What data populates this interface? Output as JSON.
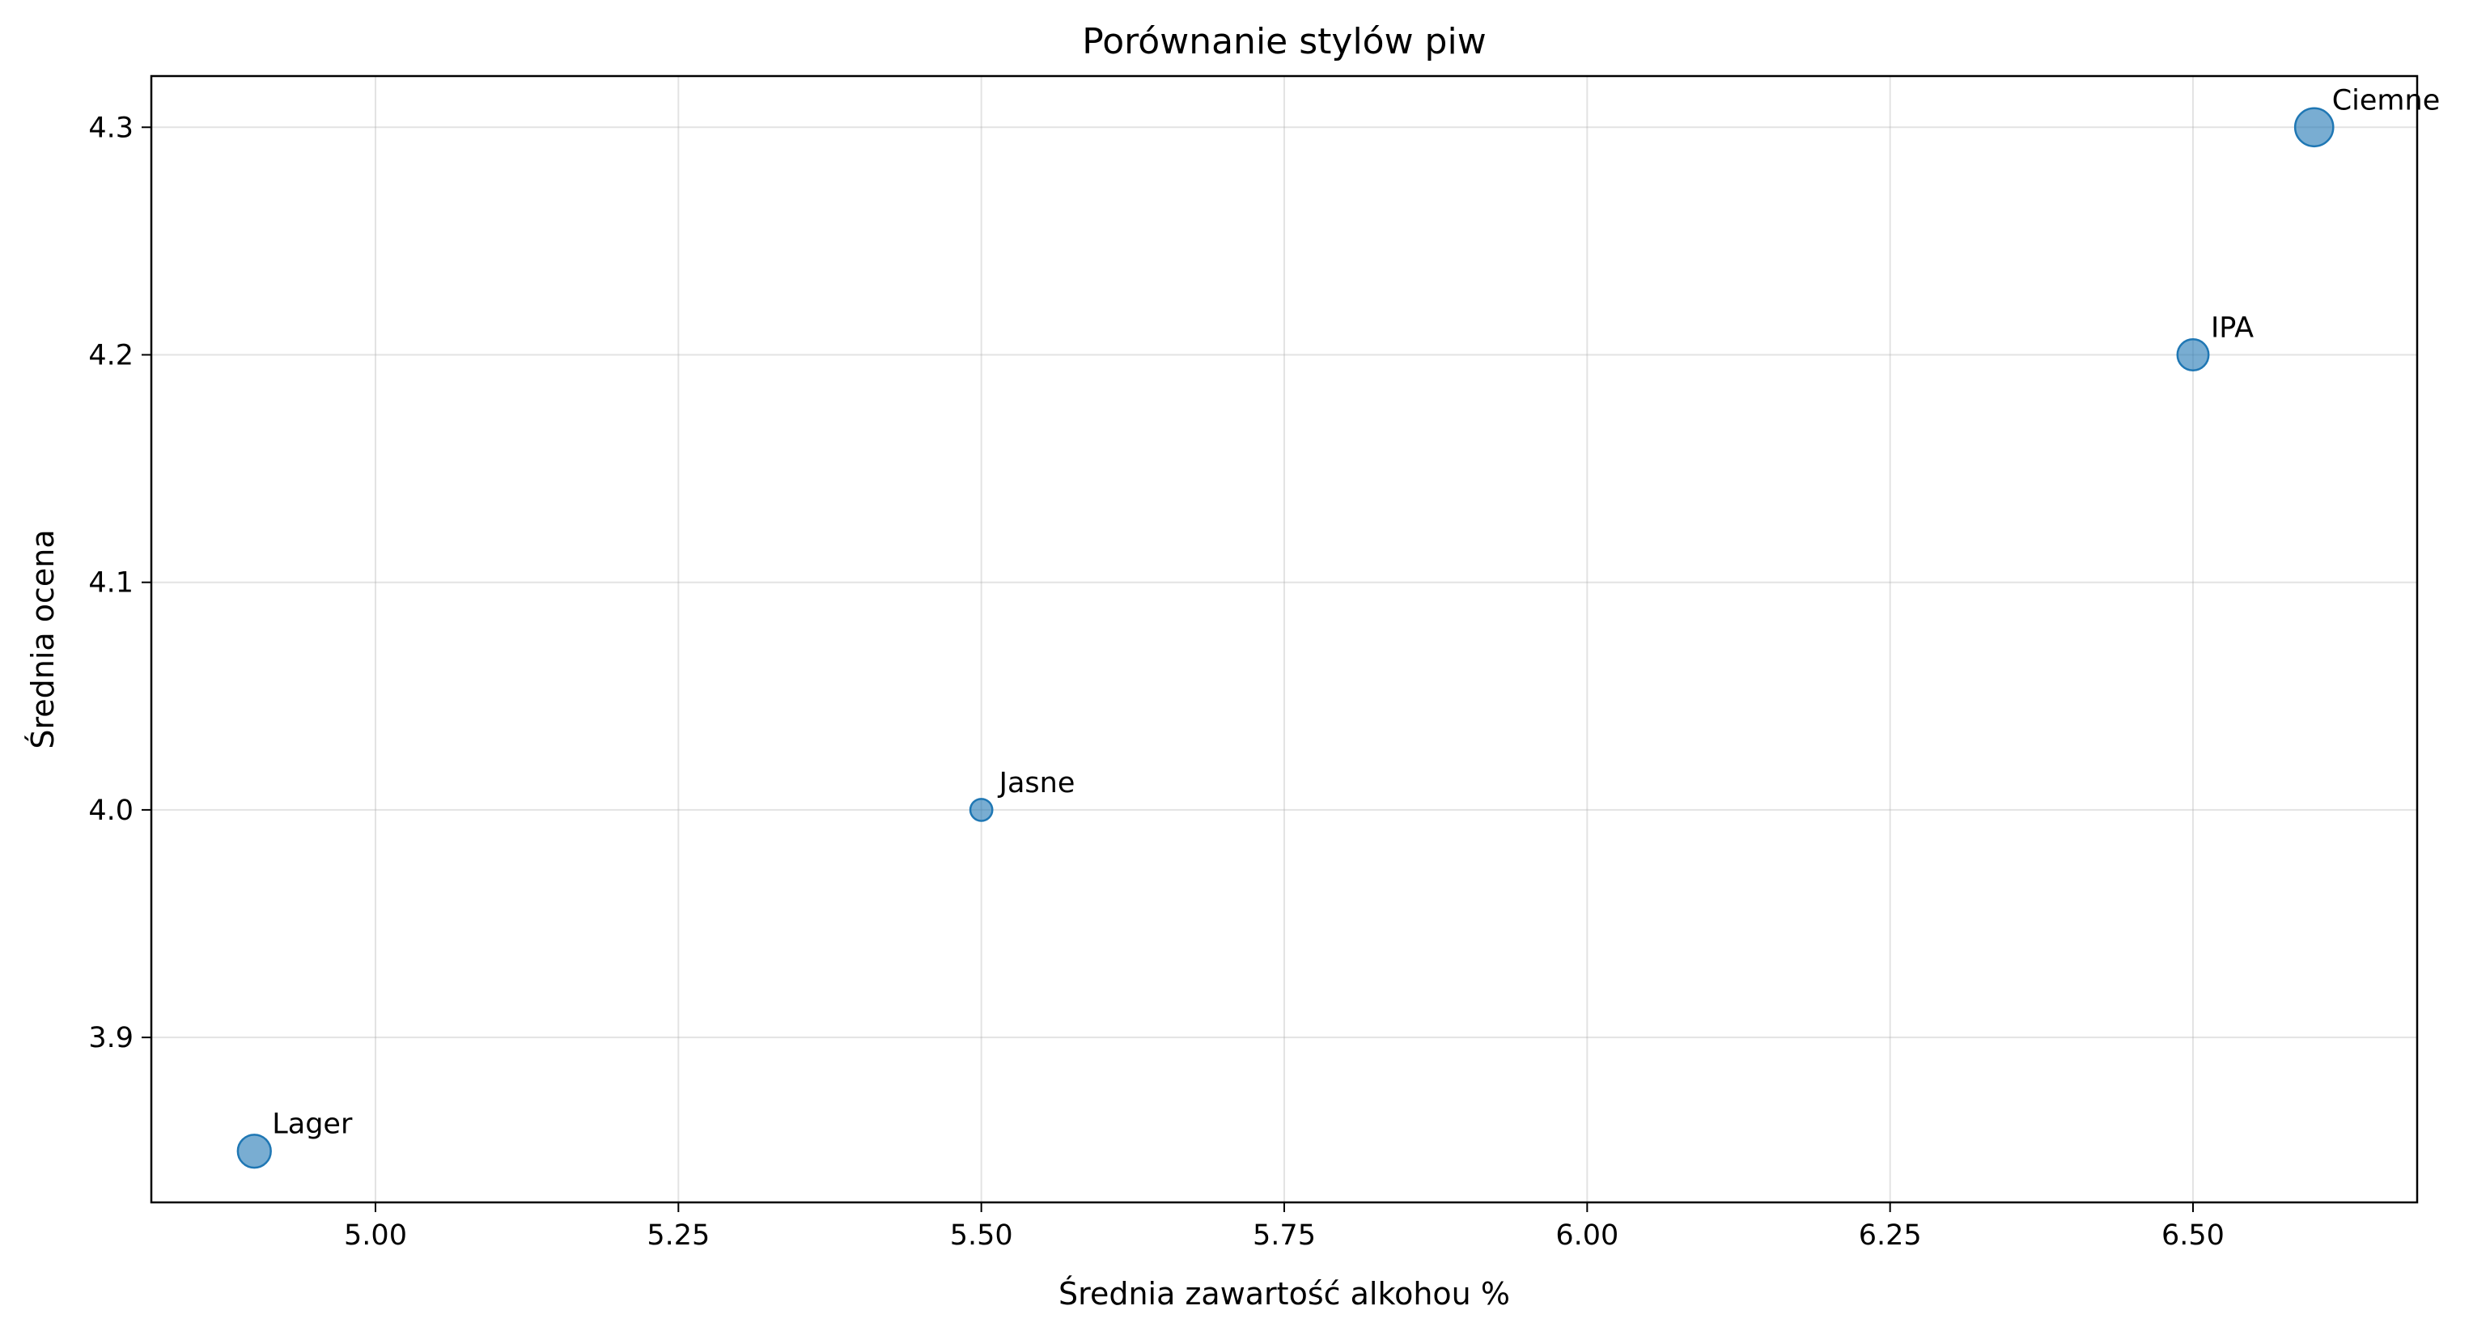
{
  "chart_data": {
    "type": "scatter",
    "title": "Porównanie stylów piw",
    "xlabel": "Średnia zawartość alkohou %",
    "ylabel": "Średnia ocena",
    "xlim": [
      4.815,
      6.685
    ],
    "ylim": [
      3.8275,
      4.3225
    ],
    "xticks": [
      5.0,
      5.25,
      5.5,
      5.75,
      6.0,
      6.25,
      6.5
    ],
    "xtick_labels": [
      "5.00",
      "5.25",
      "5.50",
      "5.75",
      "6.00",
      "6.25",
      "6.50"
    ],
    "yticks": [
      3.9,
      4.0,
      4.1,
      4.2,
      4.3
    ],
    "ytick_labels": [
      "3.9",
      "4.0",
      "4.1",
      "4.2",
      "4.3"
    ],
    "grid": true,
    "point_color": "#1f77b4",
    "points": [
      {
        "label": "Lager",
        "x": 4.9,
        "y": 3.85,
        "size": 180
      },
      {
        "label": "Jasne",
        "x": 5.5,
        "y": 4.0,
        "size": 80
      },
      {
        "label": "IPA",
        "x": 6.5,
        "y": 4.2,
        "size": 160
      },
      {
        "label": "Ciemne",
        "x": 6.6,
        "y": 4.3,
        "size": 240
      }
    ]
  }
}
